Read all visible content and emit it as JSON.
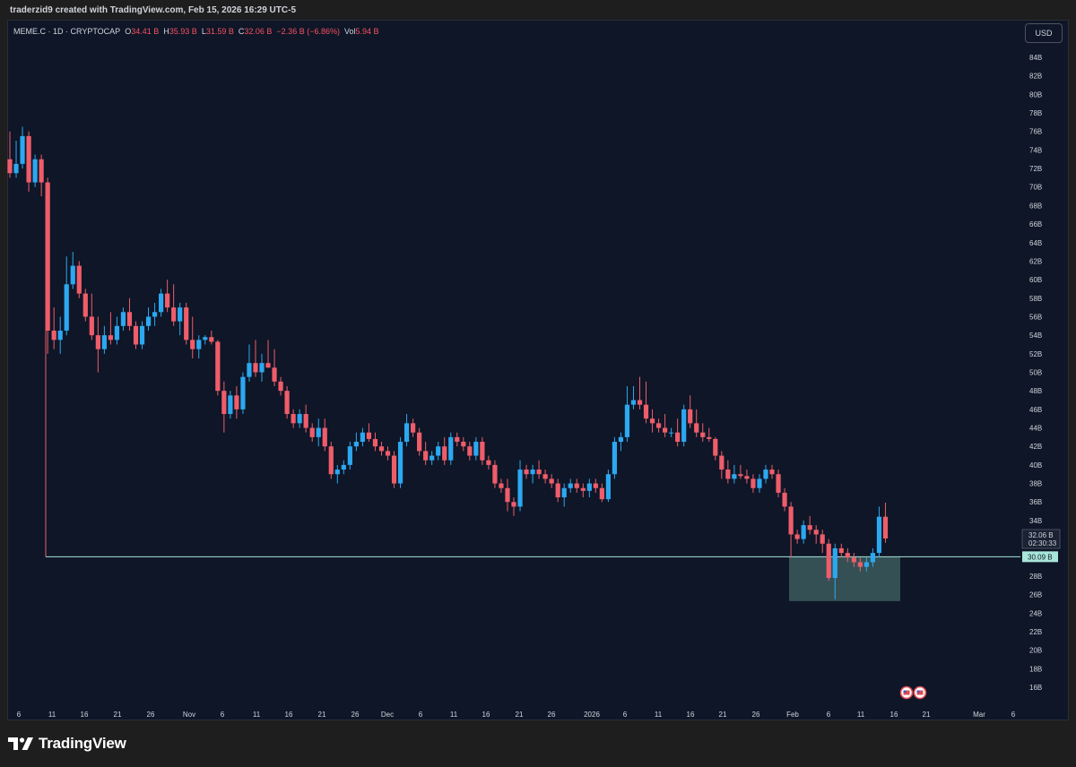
{
  "header": {
    "credit": "traderzid9 created with TradingView.com, Feb 15, 2026 16:29 UTC-5"
  },
  "legend": {
    "symbol": "MEME.C · 1D · CRYPTOCAP",
    "o_label": "O",
    "o_value": "34.41 B",
    "h_label": "H",
    "h_value": "35.93 B",
    "l_label": "L",
    "l_value": "31.59 B",
    "c_label": "C",
    "c_value": "32.06 B",
    "change": "−2.36 B (−6.86%)",
    "vol_label": "Vol",
    "vol_value": "5.94 B"
  },
  "currency_button": "USD",
  "footer": {
    "brand": "TradingView"
  },
  "colors": {
    "up": "#2ca8f0",
    "down": "#ef5d6a",
    "level": "#a8e6da",
    "zone": "#3b5a5e",
    "background": "#0e1627"
  },
  "chart_data": {
    "type": "candlestick",
    "interval": "1D",
    "ylim": [
      15,
      86
    ],
    "y_ticks": [
      16,
      18,
      20,
      22,
      24,
      26,
      28,
      30,
      32,
      34,
      36,
      38,
      40,
      42,
      44,
      46,
      48,
      50,
      52,
      54,
      56,
      58,
      60,
      62,
      64,
      66,
      68,
      70,
      72,
      74,
      76,
      78,
      80,
      82,
      84
    ],
    "y_tick_suffix": "B",
    "x_labels": [
      "6",
      "11",
      "16",
      "21",
      "26",
      "Nov",
      "6",
      "11",
      "16",
      "21",
      "26",
      "Dec",
      "6",
      "11",
      "16",
      "21",
      "26",
      "2026",
      "6",
      "11",
      "16",
      "21",
      "26",
      "Feb",
      "6",
      "11",
      "16",
      "21",
      "Mar",
      "6"
    ],
    "last_price": "32.06 B",
    "countdown": "02:30:33",
    "level_price_label": "30.09 B",
    "level_value": 30.09,
    "zone": {
      "top": 30.09,
      "bottom": 25.3
    },
    "candles": [
      {
        "o": 73.0,
        "h": 76.0,
        "l": 71.0,
        "c": 71.5
      },
      {
        "o": 71.5,
        "h": 75.0,
        "l": 71.0,
        "c": 72.5
      },
      {
        "o": 72.5,
        "h": 76.5,
        "l": 72.0,
        "c": 75.5
      },
      {
        "o": 75.5,
        "h": 76.0,
        "l": 69.5,
        "c": 70.5
      },
      {
        "o": 70.5,
        "h": 73.5,
        "l": 70.0,
        "c": 73.0
      },
      {
        "o": 73.0,
        "h": 73.5,
        "l": 69.0,
        "c": 70.5
      },
      {
        "o": 70.5,
        "h": 71.0,
        "l": 52.0,
        "c": 54.5
      },
      {
        "o": 54.5,
        "h": 57.0,
        "l": 52.5,
        "c": 53.5
      },
      {
        "o": 53.5,
        "h": 56.0,
        "l": 52.0,
        "c": 54.5
      },
      {
        "o": 54.5,
        "h": 62.5,
        "l": 54.0,
        "c": 59.5
      },
      {
        "o": 59.5,
        "h": 63.0,
        "l": 59.0,
        "c": 61.5
      },
      {
        "o": 61.5,
        "h": 62.0,
        "l": 58.0,
        "c": 58.5
      },
      {
        "o": 58.5,
        "h": 59.0,
        "l": 55.5,
        "c": 56.0
      },
      {
        "o": 56.0,
        "h": 58.5,
        "l": 53.5,
        "c": 54.0
      },
      {
        "o": 54.0,
        "h": 56.0,
        "l": 50.0,
        "c": 52.5
      },
      {
        "o": 52.5,
        "h": 55.0,
        "l": 52.0,
        "c": 54.0
      },
      {
        "o": 54.0,
        "h": 56.5,
        "l": 53.0,
        "c": 53.5
      },
      {
        "o": 53.5,
        "h": 56.0,
        "l": 53.0,
        "c": 55.0
      },
      {
        "o": 55.0,
        "h": 57.0,
        "l": 54.5,
        "c": 56.5
      },
      {
        "o": 56.5,
        "h": 58.0,
        "l": 54.5,
        "c": 55.0
      },
      {
        "o": 55.0,
        "h": 55.5,
        "l": 52.5,
        "c": 53.0
      },
      {
        "o": 53.0,
        "h": 55.5,
        "l": 52.5,
        "c": 55.0
      },
      {
        "o": 55.0,
        "h": 57.0,
        "l": 54.5,
        "c": 56.0
      },
      {
        "o": 56.0,
        "h": 57.5,
        "l": 55.0,
        "c": 56.5
      },
      {
        "o": 56.5,
        "h": 59.0,
        "l": 56.0,
        "c": 58.5
      },
      {
        "o": 58.5,
        "h": 60.0,
        "l": 56.5,
        "c": 57.0
      },
      {
        "o": 57.0,
        "h": 59.5,
        "l": 55.0,
        "c": 55.5
      },
      {
        "o": 55.5,
        "h": 57.5,
        "l": 54.0,
        "c": 57.0
      },
      {
        "o": 57.0,
        "h": 57.5,
        "l": 53.0,
        "c": 53.5
      },
      {
        "o": 53.5,
        "h": 56.0,
        "l": 51.5,
        "c": 52.5
      },
      {
        "o": 52.5,
        "h": 54.0,
        "l": 51.5,
        "c": 53.5
      },
      {
        "o": 53.5,
        "h": 54.0,
        "l": 53.0,
        "c": 53.8
      },
      {
        "o": 53.8,
        "h": 54.5,
        "l": 53.0,
        "c": 53.3
      },
      {
        "o": 53.3,
        "h": 53.5,
        "l": 47.5,
        "c": 48.0
      },
      {
        "o": 48.0,
        "h": 49.0,
        "l": 43.5,
        "c": 45.5
      },
      {
        "o": 45.5,
        "h": 48.0,
        "l": 45.0,
        "c": 47.5
      },
      {
        "o": 47.5,
        "h": 48.5,
        "l": 45.0,
        "c": 46.0
      },
      {
        "o": 46.0,
        "h": 50.0,
        "l": 45.5,
        "c": 49.5
      },
      {
        "o": 49.5,
        "h": 53.0,
        "l": 49.0,
        "c": 51.0
      },
      {
        "o": 51.0,
        "h": 53.5,
        "l": 49.5,
        "c": 50.0
      },
      {
        "o": 50.0,
        "h": 52.0,
        "l": 49.0,
        "c": 51.0
      },
      {
        "o": 51.0,
        "h": 53.5,
        "l": 50.5,
        "c": 50.5
      },
      {
        "o": 50.5,
        "h": 52.5,
        "l": 48.5,
        "c": 49.0
      },
      {
        "o": 49.0,
        "h": 49.5,
        "l": 47.5,
        "c": 48.0
      },
      {
        "o": 48.0,
        "h": 48.5,
        "l": 45.0,
        "c": 45.5
      },
      {
        "o": 45.5,
        "h": 46.0,
        "l": 44.0,
        "c": 44.5
      },
      {
        "o": 44.5,
        "h": 46.0,
        "l": 44.0,
        "c": 45.5
      },
      {
        "o": 45.5,
        "h": 46.5,
        "l": 43.5,
        "c": 44.0
      },
      {
        "o": 44.0,
        "h": 44.5,
        "l": 42.5,
        "c": 43.0
      },
      {
        "o": 43.0,
        "h": 45.0,
        "l": 42.0,
        "c": 44.0
      },
      {
        "o": 44.0,
        "h": 45.0,
        "l": 41.5,
        "c": 42.0
      },
      {
        "o": 42.0,
        "h": 42.5,
        "l": 38.5,
        "c": 39.0
      },
      {
        "o": 39.0,
        "h": 40.0,
        "l": 38.0,
        "c": 39.5
      },
      {
        "o": 39.5,
        "h": 40.5,
        "l": 39.0,
        "c": 40.0
      },
      {
        "o": 40.0,
        "h": 42.5,
        "l": 39.5,
        "c": 42.0
      },
      {
        "o": 42.0,
        "h": 43.5,
        "l": 41.5,
        "c": 42.5
      },
      {
        "o": 42.5,
        "h": 44.0,
        "l": 42.0,
        "c": 43.5
      },
      {
        "o": 43.5,
        "h": 44.5,
        "l": 42.5,
        "c": 42.8
      },
      {
        "o": 42.8,
        "h": 43.5,
        "l": 41.5,
        "c": 42.0
      },
      {
        "o": 42.0,
        "h": 42.5,
        "l": 41.0,
        "c": 41.5
      },
      {
        "o": 41.5,
        "h": 42.0,
        "l": 40.5,
        "c": 41.0
      },
      {
        "o": 41.0,
        "h": 41.5,
        "l": 37.5,
        "c": 38.0
      },
      {
        "o": 38.0,
        "h": 43.0,
        "l": 37.5,
        "c": 42.5
      },
      {
        "o": 42.5,
        "h": 45.5,
        "l": 42.0,
        "c": 44.5
      },
      {
        "o": 44.5,
        "h": 45.0,
        "l": 43.0,
        "c": 43.5
      },
      {
        "o": 43.5,
        "h": 44.0,
        "l": 41.0,
        "c": 41.5
      },
      {
        "o": 41.5,
        "h": 42.5,
        "l": 40.0,
        "c": 40.5
      },
      {
        "o": 40.5,
        "h": 41.5,
        "l": 40.0,
        "c": 41.0
      },
      {
        "o": 41.0,
        "h": 42.5,
        "l": 40.5,
        "c": 42.0
      },
      {
        "o": 42.0,
        "h": 43.0,
        "l": 40.0,
        "c": 40.5
      },
      {
        "o": 40.5,
        "h": 43.5,
        "l": 40.0,
        "c": 43.0
      },
      {
        "o": 43.0,
        "h": 43.5,
        "l": 42.0,
        "c": 42.5
      },
      {
        "o": 42.5,
        "h": 43.0,
        "l": 41.5,
        "c": 42.0
      },
      {
        "o": 42.0,
        "h": 42.5,
        "l": 40.5,
        "c": 41.0
      },
      {
        "o": 41.0,
        "h": 43.0,
        "l": 40.5,
        "c": 42.5
      },
      {
        "o": 42.5,
        "h": 43.0,
        "l": 40.0,
        "c": 40.5
      },
      {
        "o": 40.5,
        "h": 41.0,
        "l": 39.5,
        "c": 40.0
      },
      {
        "o": 40.0,
        "h": 40.5,
        "l": 37.5,
        "c": 38.0
      },
      {
        "o": 38.0,
        "h": 38.5,
        "l": 37.0,
        "c": 37.5
      },
      {
        "o": 37.5,
        "h": 38.5,
        "l": 35.0,
        "c": 36.0
      },
      {
        "o": 36.0,
        "h": 36.5,
        "l": 34.5,
        "c": 35.5
      },
      {
        "o": 35.5,
        "h": 40.5,
        "l": 35.0,
        "c": 39.5
      },
      {
        "o": 39.5,
        "h": 40.0,
        "l": 38.5,
        "c": 39.0
      },
      {
        "o": 39.0,
        "h": 40.0,
        "l": 38.0,
        "c": 39.5
      },
      {
        "o": 39.5,
        "h": 40.5,
        "l": 38.5,
        "c": 39.0
      },
      {
        "o": 39.0,
        "h": 39.5,
        "l": 38.0,
        "c": 38.5
      },
      {
        "o": 38.5,
        "h": 39.0,
        "l": 37.5,
        "c": 38.0
      },
      {
        "o": 38.0,
        "h": 38.5,
        "l": 36.0,
        "c": 36.5
      },
      {
        "o": 36.5,
        "h": 38.0,
        "l": 35.5,
        "c": 37.5
      },
      {
        "o": 37.5,
        "h": 38.5,
        "l": 37.0,
        "c": 38.0
      },
      {
        "o": 38.0,
        "h": 38.5,
        "l": 37.0,
        "c": 37.5
      },
      {
        "o": 37.5,
        "h": 38.0,
        "l": 36.5,
        "c": 37.2
      },
      {
        "o": 37.2,
        "h": 38.5,
        "l": 36.5,
        "c": 38.0
      },
      {
        "o": 38.0,
        "h": 38.5,
        "l": 37.0,
        "c": 37.5
      },
      {
        "o": 37.5,
        "h": 38.0,
        "l": 36.0,
        "c": 36.3
      },
      {
        "o": 36.3,
        "h": 39.5,
        "l": 36.0,
        "c": 39.0
      },
      {
        "o": 39.0,
        "h": 43.0,
        "l": 38.5,
        "c": 42.5
      },
      {
        "o": 42.5,
        "h": 43.5,
        "l": 41.5,
        "c": 43.0
      },
      {
        "o": 43.0,
        "h": 48.5,
        "l": 42.5,
        "c": 46.5
      },
      {
        "o": 46.5,
        "h": 48.5,
        "l": 46.0,
        "c": 47.0
      },
      {
        "o": 47.0,
        "h": 49.5,
        "l": 46.0,
        "c": 46.5
      },
      {
        "o": 46.5,
        "h": 49.0,
        "l": 44.5,
        "c": 45.0
      },
      {
        "o": 45.0,
        "h": 46.0,
        "l": 43.5,
        "c": 44.5
      },
      {
        "o": 44.5,
        "h": 45.0,
        "l": 43.5,
        "c": 44.0
      },
      {
        "o": 44.0,
        "h": 45.5,
        "l": 43.0,
        "c": 43.5
      },
      {
        "o": 43.5,
        "h": 44.0,
        "l": 43.0,
        "c": 43.5
      },
      {
        "o": 43.5,
        "h": 45.0,
        "l": 42.0,
        "c": 42.5
      },
      {
        "o": 42.5,
        "h": 46.5,
        "l": 42.0,
        "c": 46.0
      },
      {
        "o": 46.0,
        "h": 47.5,
        "l": 44.0,
        "c": 44.5
      },
      {
        "o": 44.5,
        "h": 46.0,
        "l": 43.0,
        "c": 43.5
      },
      {
        "o": 43.5,
        "h": 44.5,
        "l": 42.5,
        "c": 43.0
      },
      {
        "o": 43.0,
        "h": 44.0,
        "l": 42.5,
        "c": 42.8
      },
      {
        "o": 42.8,
        "h": 43.0,
        "l": 40.5,
        "c": 41.0
      },
      {
        "o": 41.0,
        "h": 41.5,
        "l": 38.5,
        "c": 39.5
      },
      {
        "o": 39.5,
        "h": 40.5,
        "l": 38.0,
        "c": 38.5
      },
      {
        "o": 38.5,
        "h": 40.0,
        "l": 38.0,
        "c": 39.0
      },
      {
        "o": 39.0,
        "h": 40.0,
        "l": 38.5,
        "c": 38.8
      },
      {
        "o": 38.8,
        "h": 39.5,
        "l": 38.0,
        "c": 38.5
      },
      {
        "o": 38.5,
        "h": 39.0,
        "l": 37.0,
        "c": 37.5
      },
      {
        "o": 37.5,
        "h": 39.0,
        "l": 37.0,
        "c": 38.5
      },
      {
        "o": 38.5,
        "h": 40.0,
        "l": 38.0,
        "c": 39.5
      },
      {
        "o": 39.5,
        "h": 40.0,
        "l": 38.5,
        "c": 39.0
      },
      {
        "o": 39.0,
        "h": 39.5,
        "l": 36.5,
        "c": 37.0
      },
      {
        "o": 37.0,
        "h": 37.5,
        "l": 35.0,
        "c": 35.5
      },
      {
        "o": 35.5,
        "h": 36.0,
        "l": 30.0,
        "c": 32.5
      },
      {
        "o": 32.5,
        "h": 33.0,
        "l": 31.5,
        "c": 32.0
      },
      {
        "o": 32.0,
        "h": 34.0,
        "l": 31.5,
        "c": 33.5
      },
      {
        "o": 33.5,
        "h": 34.5,
        "l": 32.5,
        "c": 33.0
      },
      {
        "o": 33.0,
        "h": 33.5,
        "l": 31.5,
        "c": 32.5
      },
      {
        "o": 32.5,
        "h": 33.0,
        "l": 30.5,
        "c": 31.5
      },
      {
        "o": 31.5,
        "h": 32.0,
        "l": 27.5,
        "c": 27.8
      },
      {
        "o": 27.8,
        "h": 31.5,
        "l": 25.5,
        "c": 31.0
      },
      {
        "o": 31.0,
        "h": 31.5,
        "l": 30.0,
        "c": 30.5
      },
      {
        "o": 30.5,
        "h": 31.0,
        "l": 29.5,
        "c": 30.0
      },
      {
        "o": 30.0,
        "h": 30.5,
        "l": 29.0,
        "c": 29.5
      },
      {
        "o": 29.5,
        "h": 30.0,
        "l": 28.5,
        "c": 29.0
      },
      {
        "o": 29.0,
        "h": 30.0,
        "l": 28.5,
        "c": 29.5
      },
      {
        "o": 29.5,
        "h": 31.0,
        "l": 29.0,
        "c": 30.5
      },
      {
        "o": 30.5,
        "h": 35.5,
        "l": 30.0,
        "c": 34.41
      },
      {
        "o": 34.41,
        "h": 35.93,
        "l": 31.59,
        "c": 32.06
      }
    ]
  }
}
